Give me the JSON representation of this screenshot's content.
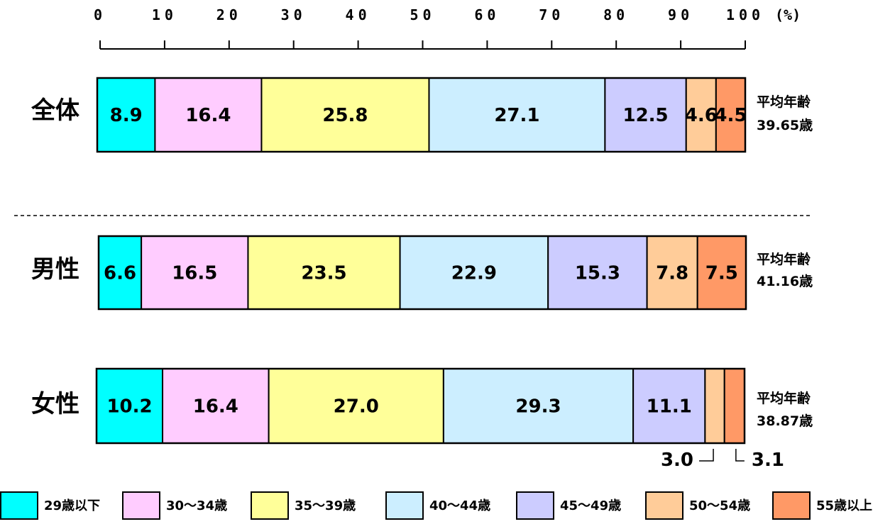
{
  "chart_data": {
    "type": "bar",
    "orientation": "horizontal-stacked-100",
    "axis": {
      "ticks": [
        "0",
        "10",
        "20",
        "30",
        "40",
        "50",
        "60",
        "70",
        "80",
        "90",
        "100"
      ],
      "unit": "(%)",
      "range": [
        0,
        100
      ]
    },
    "series": [
      {
        "name": "29歳以下",
        "color": "#00ffff"
      },
      {
        "name": "30～34歳",
        "color": "#ffccff"
      },
      {
        "name": "35～39歳",
        "color": "#ffff99"
      },
      {
        "name": "40～44歳",
        "color": "#cceeff"
      },
      {
        "name": "45～49歳",
        "color": "#ccccff"
      },
      {
        "name": "50～54歳",
        "color": "#ffcc99"
      },
      {
        "name": "55歳以上",
        "color": "#ff9966"
      }
    ],
    "rows": [
      {
        "label": "全体",
        "values": [
          8.9,
          16.4,
          25.8,
          27.1,
          12.5,
          4.6,
          4.5
        ],
        "labels": [
          "8.9",
          "16.4",
          "25.8",
          "27.1",
          "12.5",
          "4.6",
          "4.5"
        ],
        "avg_label": "平均年齢",
        "avg_value": "39.65歳"
      },
      {
        "label": "男性",
        "values": [
          6.6,
          16.5,
          23.5,
          22.9,
          15.3,
          7.8,
          7.5
        ],
        "labels": [
          "6.6",
          "16.5",
          "23.5",
          "22.9",
          "15.3",
          "7.8",
          "7.5"
        ],
        "avg_label": "平均年齢",
        "avg_value": "41.16歳"
      },
      {
        "label": "女性",
        "values": [
          10.2,
          16.4,
          27.0,
          29.3,
          11.1,
          3.0,
          3.1
        ],
        "labels": [
          "10.2",
          "16.4",
          "27.0",
          "29.3",
          "11.1",
          "3.0",
          "3.1"
        ],
        "avg_label": "平均年齢",
        "avg_value": "38.87歳"
      }
    ]
  }
}
